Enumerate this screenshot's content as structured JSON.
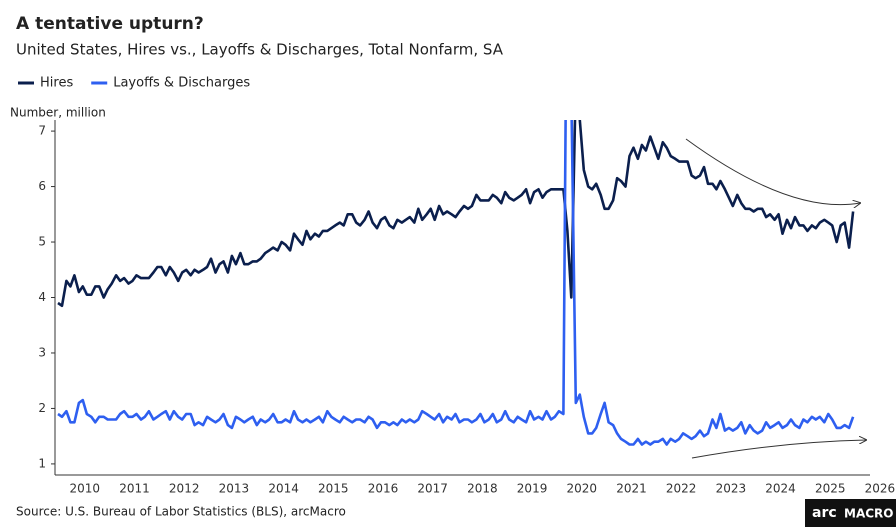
{
  "chart_data": {
    "type": "line",
    "title": "A tentative upturn?",
    "subtitle": "United States, Hires vs., Layoffs & Discharges, Total Nonfarm, SA",
    "ylabel": "Number, million",
    "source": "Source: U.S. Bureau of Labor Statistics (BLS), arcMacro",
    "logo": [
      "arc",
      "MACRO"
    ],
    "xlim": [
      2009.9,
      2026.3
    ],
    "ylim": [
      0.8,
      7.2
    ],
    "yticks": [
      1,
      2,
      3,
      4,
      5,
      6,
      7
    ],
    "xticks": [
      {
        "value": 2010.5,
        "label": "2010"
      },
      {
        "value": 2011.5,
        "label": "2011"
      },
      {
        "value": 2012.5,
        "label": "2012"
      },
      {
        "value": 2013.5,
        "label": "2013"
      },
      {
        "value": 2014.5,
        "label": "2014"
      },
      {
        "value": 2015.5,
        "label": "2015"
      },
      {
        "value": 2016.5,
        "label": "2016"
      },
      {
        "value": 2017.5,
        "label": "2017"
      },
      {
        "value": 2018.5,
        "label": "2018"
      },
      {
        "value": 2019.5,
        "label": "2019"
      },
      {
        "value": 2020.5,
        "label": "2020"
      },
      {
        "value": 2021.5,
        "label": "2021"
      },
      {
        "value": 2022.5,
        "label": "2022"
      },
      {
        "value": 2023.5,
        "label": "2023"
      },
      {
        "value": 2024.5,
        "label": "2024"
      },
      {
        "value": 2025.5,
        "label": "2025"
      },
      {
        "value": 2026.5,
        "label": "2026"
      }
    ],
    "x": [
      2009.96,
      2010.04,
      2010.13,
      2010.21,
      2010.29,
      2010.38,
      2010.46,
      2010.54,
      2010.63,
      2010.71,
      2010.79,
      2010.88,
      2010.96,
      2011.04,
      2011.13,
      2011.21,
      2011.29,
      2011.38,
      2011.46,
      2011.54,
      2011.63,
      2011.71,
      2011.79,
      2011.88,
      2011.96,
      2012.04,
      2012.13,
      2012.21,
      2012.29,
      2012.38,
      2012.46,
      2012.54,
      2012.63,
      2012.71,
      2012.79,
      2012.88,
      2012.96,
      2013.04,
      2013.13,
      2013.21,
      2013.29,
      2013.38,
      2013.46,
      2013.54,
      2013.63,
      2013.71,
      2013.79,
      2013.88,
      2013.96,
      2014.04,
      2014.13,
      2014.21,
      2014.29,
      2014.38,
      2014.46,
      2014.54,
      2014.63,
      2014.71,
      2014.79,
      2014.88,
      2014.96,
      2015.04,
      2015.13,
      2015.21,
      2015.29,
      2015.38,
      2015.46,
      2015.54,
      2015.63,
      2015.71,
      2015.79,
      2015.88,
      2015.96,
      2016.04,
      2016.13,
      2016.21,
      2016.29,
      2016.38,
      2016.46,
      2016.54,
      2016.63,
      2016.71,
      2016.79,
      2016.88,
      2016.96,
      2017.04,
      2017.13,
      2017.21,
      2017.29,
      2017.38,
      2017.46,
      2017.54,
      2017.63,
      2017.71,
      2017.79,
      2017.88,
      2017.96,
      2018.04,
      2018.13,
      2018.21,
      2018.29,
      2018.38,
      2018.46,
      2018.54,
      2018.63,
      2018.71,
      2018.79,
      2018.88,
      2018.96,
      2019.04,
      2019.13,
      2019.21,
      2019.29,
      2019.38,
      2019.46,
      2019.54,
      2019.63,
      2019.71,
      2019.79,
      2019.88,
      2019.96,
      2020.04,
      2020.13,
      2020.21,
      2020.29,
      2020.38,
      2020.46,
      2020.54,
      2020.63,
      2020.71,
      2020.79,
      2020.88,
      2020.96,
      2021.04,
      2021.13,
      2021.21,
      2021.29,
      2021.38,
      2021.46,
      2021.54,
      2021.63,
      2021.71,
      2021.79,
      2021.88,
      2021.96,
      2022.04,
      2022.13,
      2022.21,
      2022.29,
      2022.38,
      2022.46,
      2022.54,
      2022.63,
      2022.71,
      2022.79,
      2022.88,
      2022.96,
      2023.04,
      2023.13,
      2023.21,
      2023.29,
      2023.38,
      2023.46,
      2023.54,
      2023.63,
      2023.71,
      2023.79,
      2023.88,
      2023.96,
      2024.04,
      2024.13,
      2024.21,
      2024.29,
      2024.38,
      2024.46,
      2024.54,
      2024.63,
      2024.71,
      2024.79,
      2024.88,
      2024.96,
      2025.04,
      2025.13,
      2025.21,
      2025.29,
      2025.38,
      2025.46,
      2025.54,
      2025.63,
      2025.71,
      2025.79,
      2025.88,
      2025.96
    ],
    "series": [
      {
        "name": "Hires",
        "color": "#0b1f4d",
        "values": [
          3.9,
          3.85,
          4.3,
          4.2,
          4.4,
          4.1,
          4.2,
          4.05,
          4.05,
          4.2,
          4.2,
          4.0,
          4.15,
          4.25,
          4.4,
          4.3,
          4.35,
          4.25,
          4.3,
          4.4,
          4.35,
          4.35,
          4.35,
          4.45,
          4.55,
          4.55,
          4.4,
          4.55,
          4.45,
          4.3,
          4.45,
          4.5,
          4.4,
          4.5,
          4.45,
          4.5,
          4.55,
          4.7,
          4.45,
          4.6,
          4.65,
          4.45,
          4.75,
          4.6,
          4.8,
          4.6,
          4.6,
          4.65,
          4.65,
          4.7,
          4.8,
          4.85,
          4.9,
          4.85,
          5.0,
          4.95,
          4.85,
          5.15,
          5.05,
          4.95,
          5.2,
          5.05,
          5.15,
          5.1,
          5.2,
          5.2,
          5.25,
          5.3,
          5.35,
          5.3,
          5.5,
          5.5,
          5.35,
          5.3,
          5.4,
          5.55,
          5.35,
          5.25,
          5.4,
          5.45,
          5.3,
          5.25,
          5.4,
          5.35,
          5.4,
          5.45,
          5.35,
          5.6,
          5.4,
          5.5,
          5.6,
          5.4,
          5.65,
          5.5,
          5.55,
          5.5,
          5.45,
          5.55,
          5.65,
          5.6,
          5.65,
          5.85,
          5.75,
          5.75,
          5.75,
          5.85,
          5.8,
          5.7,
          5.9,
          5.8,
          5.75,
          5.8,
          5.85,
          5.95,
          5.7,
          5.9,
          5.95,
          5.8,
          5.9,
          5.95,
          5.95,
          5.95,
          5.95,
          5.2,
          4.0,
          7.9,
          7.2,
          6.3,
          6.0,
          5.95,
          6.05,
          5.85,
          5.6,
          5.6,
          5.75,
          6.15,
          6.1,
          6.0,
          6.55,
          6.7,
          6.5,
          6.75,
          6.65,
          6.9,
          6.7,
          6.5,
          6.8,
          6.7,
          6.55,
          6.5,
          6.45,
          6.45,
          6.45,
          6.2,
          6.15,
          6.2,
          6.35,
          6.05,
          6.05,
          5.95,
          6.1,
          5.95,
          5.8,
          5.65,
          5.85,
          5.7,
          5.6,
          5.6,
          5.55,
          5.6,
          5.6,
          5.45,
          5.5,
          5.4,
          5.5,
          5.15,
          5.4,
          5.25,
          5.45,
          5.3,
          5.3,
          5.2,
          5.3,
          5.25,
          5.35,
          5.4,
          5.35,
          5.3,
          5.0,
          5.3,
          5.35,
          4.9,
          5.55
        ]
      },
      {
        "name": "Layoffs & Discharges",
        "color": "#2e5ff0",
        "values": [
          1.9,
          1.85,
          1.95,
          1.75,
          1.75,
          2.1,
          2.15,
          1.9,
          1.85,
          1.75,
          1.85,
          1.85,
          1.8,
          1.8,
          1.8,
          1.9,
          1.95,
          1.85,
          1.85,
          1.9,
          1.8,
          1.85,
          1.95,
          1.8,
          1.85,
          1.9,
          1.95,
          1.8,
          1.95,
          1.85,
          1.8,
          1.9,
          1.9,
          1.7,
          1.75,
          1.7,
          1.85,
          1.8,
          1.75,
          1.8,
          1.9,
          1.7,
          1.65,
          1.85,
          1.8,
          1.75,
          1.8,
          1.85,
          1.7,
          1.8,
          1.75,
          1.8,
          1.9,
          1.75,
          1.75,
          1.8,
          1.75,
          1.95,
          1.8,
          1.75,
          1.8,
          1.75,
          1.8,
          1.85,
          1.75,
          1.95,
          1.85,
          1.8,
          1.75,
          1.85,
          1.8,
          1.75,
          1.8,
          1.8,
          1.75,
          1.85,
          1.8,
          1.65,
          1.75,
          1.75,
          1.7,
          1.75,
          1.7,
          1.8,
          1.75,
          1.8,
          1.75,
          1.8,
          1.95,
          1.9,
          1.85,
          1.8,
          1.9,
          1.75,
          1.85,
          1.8,
          1.9,
          1.75,
          1.8,
          1.8,
          1.75,
          1.8,
          1.9,
          1.75,
          1.8,
          1.9,
          1.75,
          1.8,
          1.95,
          1.8,
          1.75,
          1.85,
          1.8,
          1.75,
          1.95,
          1.8,
          1.85,
          1.8,
          1.95,
          1.8,
          1.85,
          1.95,
          1.9,
          11.5,
          7.7,
          2.1,
          2.25,
          1.85,
          1.55,
          1.55,
          1.65,
          1.9,
          2.1,
          1.75,
          1.7,
          1.55,
          1.45,
          1.4,
          1.35,
          1.35,
          1.45,
          1.35,
          1.4,
          1.35,
          1.4,
          1.4,
          1.45,
          1.35,
          1.45,
          1.4,
          1.45,
          1.55,
          1.5,
          1.45,
          1.5,
          1.6,
          1.5,
          1.55,
          1.8,
          1.65,
          1.9,
          1.6,
          1.65,
          1.6,
          1.65,
          1.75,
          1.55,
          1.7,
          1.6,
          1.55,
          1.6,
          1.75,
          1.65,
          1.7,
          1.75,
          1.65,
          1.7,
          1.8,
          1.7,
          1.65,
          1.8,
          1.75,
          1.85,
          1.8,
          1.85,
          1.75,
          1.9,
          1.8,
          1.65,
          1.65,
          1.7,
          1.65,
          1.85
        ]
      }
    ]
  }
}
